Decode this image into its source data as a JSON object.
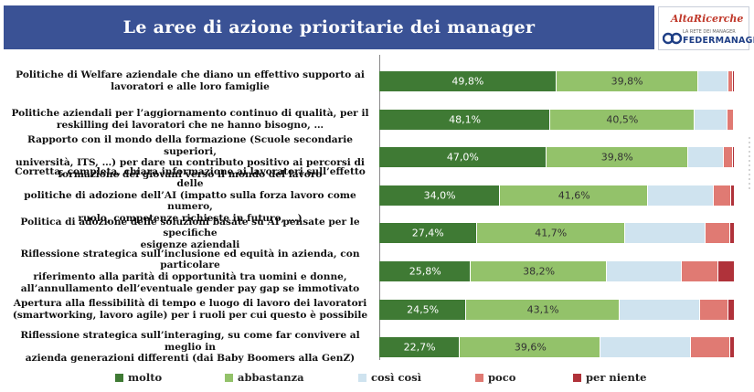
{
  "header": {
    "title": "Le aree di azione prioritarie dei manager",
    "logo_top_name": "AltaRicerche",
    "logo_bottom_small": "LA RETE DEI MANAGER",
    "logo_bottom_name": "FEDERMANAGER"
  },
  "colors": {
    "header_bg": "#3a5295",
    "molto": "#3f7a34",
    "abbastanza": "#93c26a",
    "cosi_cosi": "#cfe3ef",
    "poco": "#e07a73",
    "per_niente": "#b0323a"
  },
  "chart_data": {
    "type": "bar",
    "orientation": "horizontal-stacked-100",
    "title": "Le aree di azione prioritarie dei manager",
    "categories": [
      "Politiche di Welfare aziendale che diano un effettivo supporto ai lavoratori e alle loro famiglie",
      "Politiche aziendali per l’aggiornamento continuo di qualità, per il reskilling dei lavoratori che ne hanno bisogno, …",
      "Rapporto con il mondo della formazione (Scuole secondarie superiori, università, ITS, …) per dare un contributo positivo ai percorsi di formazione dei giovani verso il mondo del lavoro",
      "Corretta, completa, chiara informazione ai lavoratori sull’effetto delle politiche di adozione dell’AI (impatto sulla forza lavoro come numero, ruolo, competenze richieste in futuro, …)",
      "Politica di adozione delle soluzioni basate su AI pensate per le specifiche esigenze aziendali",
      "Riflessione strategica sull’inclusione ed equità in azienda, con particolare riferimento alla parità di opportunità tra uomini e donne, all’annullamento dell’eventuale gender pay gap se immotivato",
      "Apertura alla flessibilità di tempo e luogo di lavoro dei lavoratori (smartworking, lavoro agile) per i ruoli per cui questo è possibile",
      "Riflessione strategica sull’interaging, su come far convivere al meglio in azienda generazioni differenti (dai Baby Boomers alla GenZ)"
    ],
    "category_lines": [
      [
        "Politiche di Welfare aziendale che diano un effettivo supporto ai",
        "lavoratori e alle loro famiglie"
      ],
      [
        "Politiche aziendali per l’aggiornamento continuo di qualità, per il",
        "reskilling dei lavoratori che ne hanno bisogno, …"
      ],
      [
        "Rapporto con il mondo della formazione (Scuole secondarie superiori,",
        "università, ITS, …) per dare un contributo positivo ai percorsi di",
        "formazione dei giovani verso il mondo del lavoro"
      ],
      [
        "Corretta, completa, chiara informazione ai lavoratori sull’effetto delle",
        "politiche di adozione dell’AI (impatto sulla forza lavoro come numero,",
        "ruolo, competenze richieste in futuro, …)"
      ],
      [
        "Politica di adozione delle soluzioni basate su AI pensate per le specifiche",
        "esigenze aziendali"
      ],
      [
        "Riflessione strategica sull’inclusione ed equità in azienda, con particolare",
        "riferimento alla parità di opportunità tra uomini e donne,",
        "all’annullamento dell’eventuale gender pay gap se immotivato"
      ],
      [
        "Apertura alla flessibilità di tempo e luogo di lavoro dei lavoratori",
        "(smartworking, lavoro agile) per i ruoli per cui questo è possibile"
      ],
      [
        "Riflessione strategica sull’interaging, su come far convivere al meglio in",
        "azienda generazioni differenti (dai Baby Boomers alla GenZ)"
      ]
    ],
    "series": [
      {
        "name": "molto",
        "color": "#3f7a34",
        "values": [
          49.8,
          48.1,
          47.0,
          34.0,
          27.4,
          25.8,
          24.5,
          22.7
        ],
        "labels": [
          "49,8%",
          "48,1%",
          "47,0%",
          "34,0%",
          "27,4%",
          "25,8%",
          "24,5%",
          "22,7%"
        ]
      },
      {
        "name": "abbastanza",
        "color": "#93c26a",
        "values": [
          39.8,
          40.5,
          39.8,
          41.6,
          41.7,
          38.2,
          43.1,
          39.6
        ],
        "labels": [
          "39,8%",
          "40,5%",
          "39,8%",
          "41,6%",
          "41,7%",
          "38,2%",
          "43,1%",
          "39,6%"
        ]
      },
      {
        "name": "così così",
        "color": "#cfe3ef",
        "values": [
          8.7,
          9.4,
          10.2,
          18.4,
          22.6,
          21.1,
          22.6,
          25.4
        ]
      },
      {
        "name": "poco",
        "color": "#e07a73",
        "values": [
          1.2,
          1.7,
          2.5,
          4.9,
          6.9,
          10.4,
          7.9,
          10.9
        ]
      },
      {
        "name": "per niente",
        "color": "#b0323a",
        "values": [
          0.5,
          0.3,
          0.5,
          1.1,
          1.4,
          4.5,
          1.9,
          1.4
        ]
      }
    ],
    "xlim": [
      0,
      100
    ],
    "grid": false,
    "legend_position": "bottom",
    "legend": [
      "molto",
      "abbastanza",
      "così così",
      "poco",
      "per niente"
    ]
  }
}
